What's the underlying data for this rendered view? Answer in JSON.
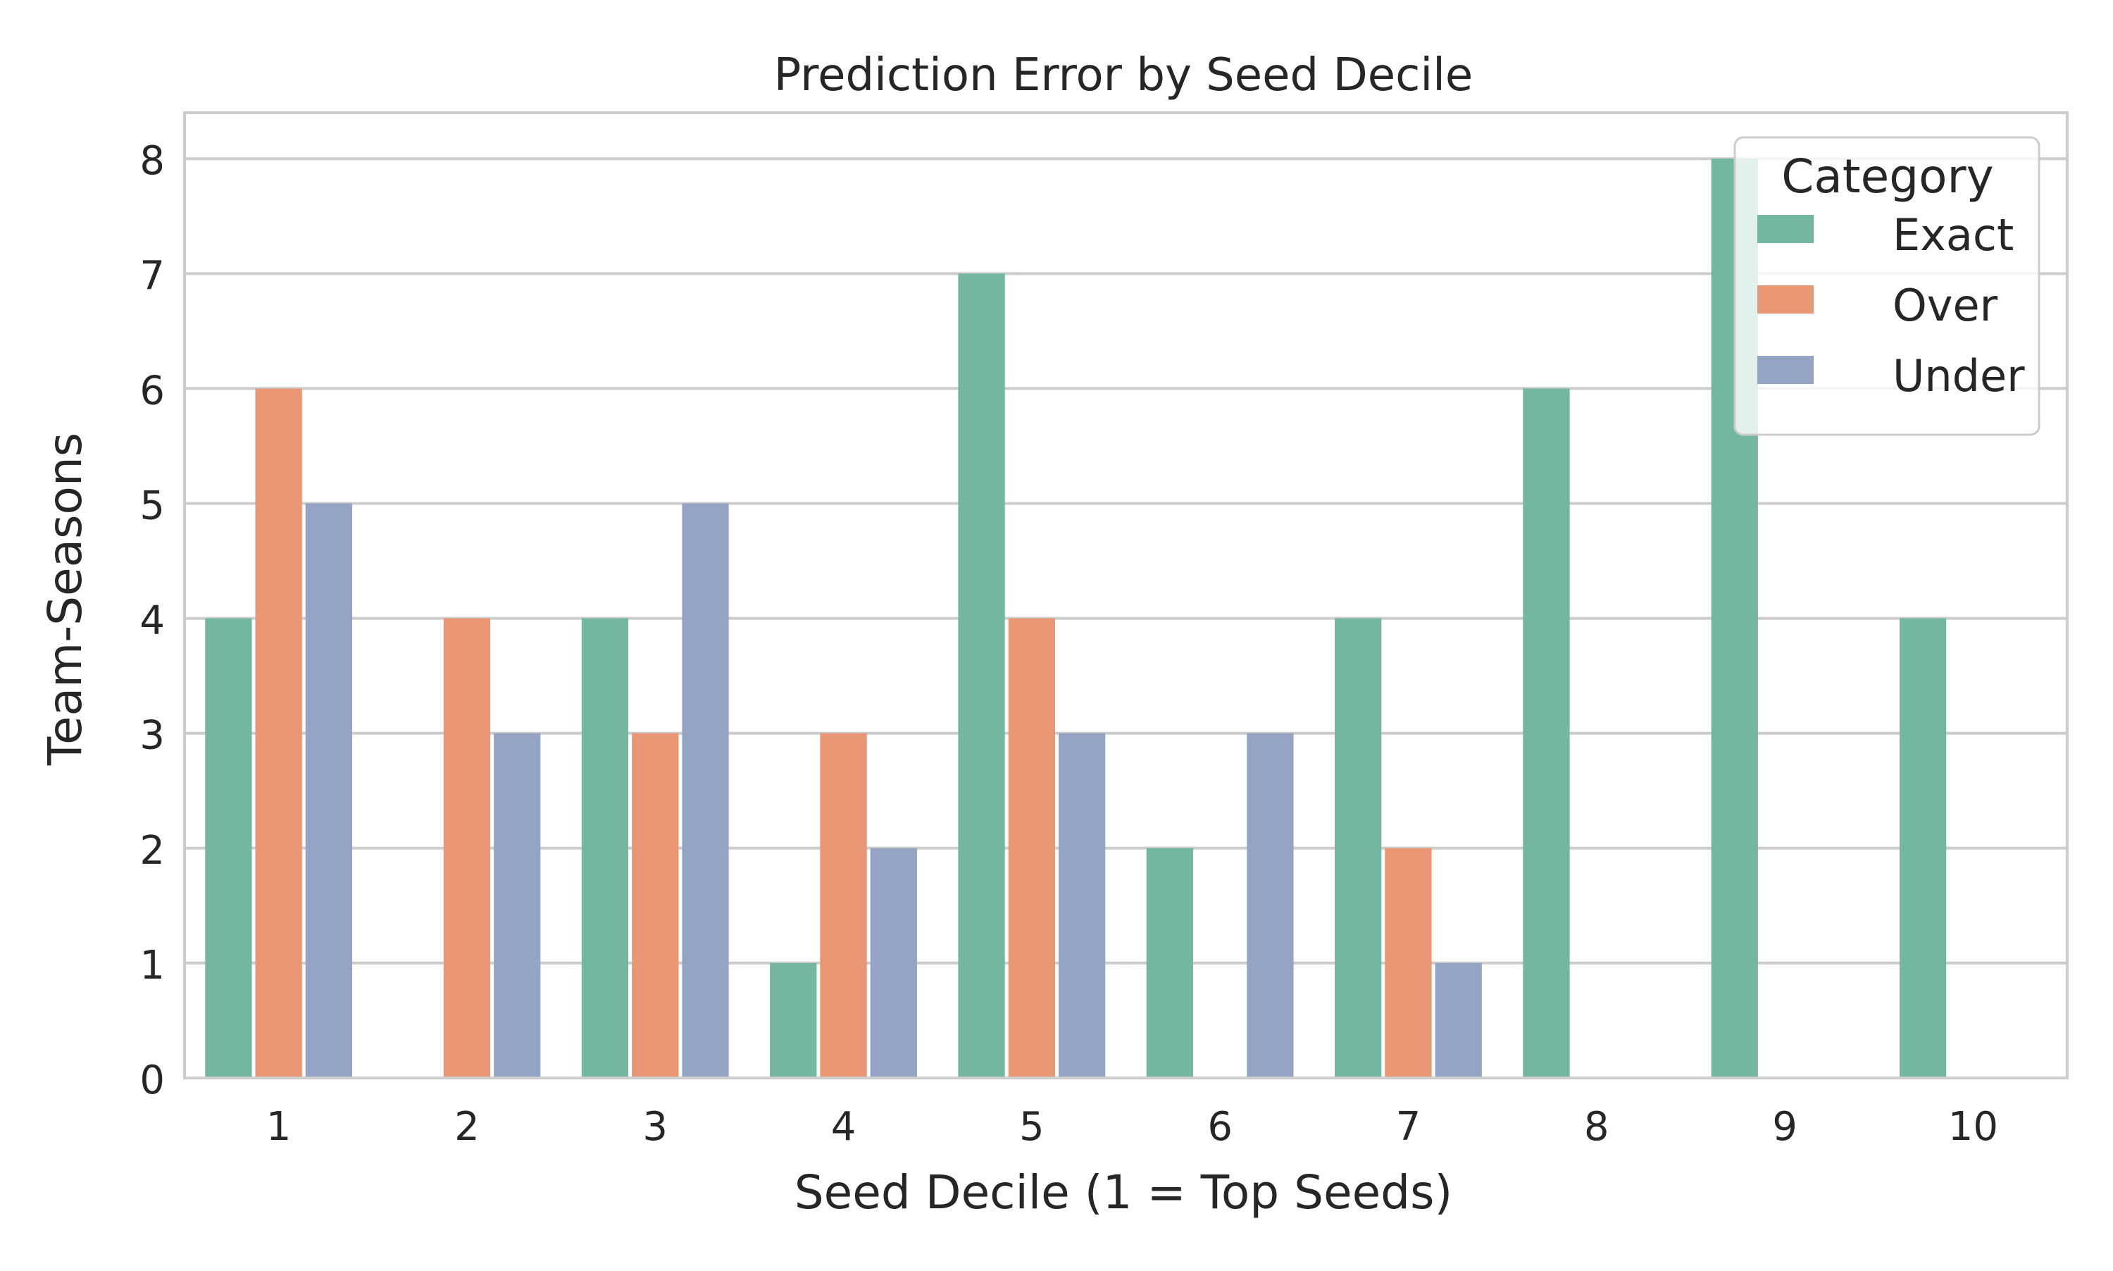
{
  "chart_data": {
    "type": "bar",
    "title": "Prediction Error by Seed Decile",
    "xlabel": "Seed Decile (1 = Top Seeds)",
    "ylabel": "Team-Seasons",
    "categories": [
      "1",
      "2",
      "3",
      "4",
      "5",
      "6",
      "7",
      "8",
      "9",
      "10"
    ],
    "series": [
      {
        "name": "Exact",
        "color": "#73b7a0",
        "values": [
          4,
          0,
          4,
          1,
          7,
          2,
          4,
          6,
          8,
          4
        ]
      },
      {
        "name": "Over",
        "color": "#e99675",
        "values": [
          6,
          4,
          3,
          3,
          4,
          0,
          2,
          0,
          0,
          0
        ]
      },
      {
        "name": "Under",
        "color": "#95a4c4",
        "values": [
          5,
          3,
          5,
          2,
          3,
          3,
          1,
          0,
          0,
          0
        ]
      }
    ],
    "ylim": [
      0,
      8.4
    ],
    "yticks": [
      0,
      1,
      2,
      3,
      4,
      5,
      6,
      7,
      8
    ],
    "grid": true,
    "legend": {
      "title": "Category",
      "placement": "top-right"
    }
  }
}
